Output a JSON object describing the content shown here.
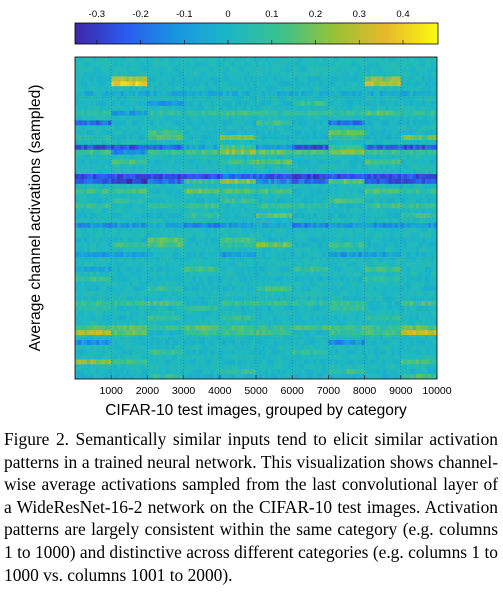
{
  "chart_data": {
    "type": "heatmap",
    "xlabel": "CIFAR-10 test images, grouped by category",
    "ylabel": "Average channel activations (sampled)",
    "x_ticks": [
      1000,
      2000,
      3000,
      4000,
      5000,
      6000,
      7000,
      8000,
      9000,
      10000
    ],
    "xlim": [
      0,
      10000
    ],
    "colorbar": {
      "ticks": [
        -0.3,
        -0.2,
        -0.1,
        0,
        0.1,
        0.2,
        0.3,
        0.4
      ],
      "range": [
        -0.35,
        0.48
      ],
      "colormap": [
        "#3e26a8",
        "#2a5cf0",
        "#1799e0",
        "#1cb8c4",
        "#3cc28c",
        "#98c334",
        "#e8b82a",
        "#f9fb0e"
      ],
      "placement": "top"
    },
    "n_categories": 10,
    "grid": true,
    "baseline_value": 0.02,
    "rows": [
      {
        "row": 4,
        "values": [
          0,
          0.3,
          0,
          0,
          0,
          0,
          0,
          0,
          0.22,
          0
        ]
      },
      {
        "row": 5,
        "values": [
          0,
          0.38,
          0,
          0,
          0,
          0,
          0,
          0,
          0.3,
          0
        ]
      },
      {
        "row": 7,
        "values": [
          -0.04,
          -0.04,
          -0.04,
          -0.04,
          -0.04,
          -0.04,
          -0.04,
          -0.04,
          -0.04,
          -0.04
        ]
      },
      {
        "row": 9,
        "values": [
          0,
          0,
          -0.12,
          0,
          0,
          0,
          0.1,
          0,
          0,
          0
        ]
      },
      {
        "row": 11,
        "values": [
          0.08,
          -0.1,
          0.08,
          0.08,
          0.12,
          0.08,
          0.08,
          0.08,
          0.15,
          0.08
        ]
      },
      {
        "row": 13,
        "values": [
          -0.2,
          0,
          0,
          0,
          0,
          0.1,
          0,
          -0.2,
          0,
          0
        ]
      },
      {
        "row": 15,
        "values": [
          0,
          0,
          0.12,
          0,
          0,
          0,
          0,
          0.18,
          0,
          0
        ]
      },
      {
        "row": 16,
        "values": [
          0.06,
          0,
          0.16,
          0,
          0.2,
          0,
          0,
          0.1,
          0,
          0.18
        ]
      },
      {
        "row": 18,
        "values": [
          -0.25,
          -0.25,
          -0.2,
          -0.05,
          0.12,
          -0.1,
          -0.25,
          0.1,
          -0.2,
          -0.25
        ]
      },
      {
        "row": 19,
        "values": [
          0.1,
          -0.15,
          0.1,
          0.12,
          0.22,
          0.18,
          0.12,
          0.2,
          0.1,
          0.08
        ]
      },
      {
        "row": 21,
        "values": [
          0,
          0.12,
          0,
          0,
          0.1,
          0.15,
          0,
          0,
          0.12,
          0
        ]
      },
      {
        "row": 24,
        "values": [
          -0.25,
          -0.28,
          -0.28,
          -0.25,
          -0.2,
          -0.25,
          -0.28,
          -0.25,
          -0.28,
          -0.25
        ]
      },
      {
        "row": 25,
        "values": [
          -0.22,
          -0.3,
          -0.2,
          0.1,
          0.22,
          -0.12,
          -0.2,
          0.15,
          -0.25,
          -0.25
        ]
      },
      {
        "row": 27,
        "values": [
          0.1,
          0.12,
          0,
          0.18,
          0.12,
          0.12,
          0,
          0,
          0.15,
          0.08
        ]
      },
      {
        "row": 29,
        "values": [
          0,
          0.08,
          0,
          0,
          0.1,
          0,
          0,
          0.12,
          0,
          0
        ]
      },
      {
        "row": 30,
        "values": [
          0.1,
          0,
          0.08,
          0.12,
          0,
          0.1,
          0.08,
          0,
          0.12,
          0.1
        ]
      },
      {
        "row": 32,
        "values": [
          0,
          0,
          0,
          0.1,
          0,
          0.16,
          0,
          0,
          0,
          0.1
        ]
      },
      {
        "row": 34,
        "values": [
          -0.12,
          -0.1,
          -0.05,
          -0.15,
          -0.1,
          -0.05,
          -0.15,
          -0.1,
          -0.12,
          -0.1
        ]
      },
      {
        "row": 37,
        "values": [
          0,
          0,
          0.18,
          0,
          0.12,
          0,
          0,
          0,
          0,
          0
        ]
      },
      {
        "row": 38,
        "values": [
          0,
          0.1,
          0.14,
          0,
          0.08,
          0.2,
          0,
          0.1,
          0,
          0
        ]
      },
      {
        "row": 40,
        "values": [
          -0.08,
          -0.08,
          0,
          0,
          -0.1,
          0,
          0,
          -0.1,
          -0.08,
          0
        ]
      },
      {
        "row": 43,
        "values": [
          -0.05,
          0,
          0,
          0.12,
          0,
          0,
          0.1,
          0,
          0.12,
          0
        ]
      },
      {
        "row": 45,
        "values": [
          0.1,
          0,
          0,
          0,
          0,
          0,
          0,
          0,
          0.08,
          0
        ]
      },
      {
        "row": 47,
        "values": [
          0,
          0,
          0.1,
          0,
          0,
          0.12,
          0,
          0,
          0,
          0
        ]
      },
      {
        "row": 50,
        "values": [
          0.1,
          0.08,
          0.12,
          0,
          0.1,
          0.1,
          0.08,
          0.1,
          0,
          0.12
        ]
      },
      {
        "row": 51,
        "values": [
          0.05,
          0,
          0,
          0.08,
          0,
          0,
          0,
          0.08,
          0,
          0
        ]
      },
      {
        "row": 53,
        "values": [
          0,
          0,
          0.08,
          0,
          0.1,
          0,
          0,
          0,
          0.1,
          0
        ]
      },
      {
        "row": 55,
        "values": [
          0.12,
          0.18,
          0.1,
          0.15,
          0.12,
          0.1,
          0.12,
          0.12,
          0.1,
          0.15
        ]
      },
      {
        "row": 56,
        "values": [
          0.28,
          0.15,
          0,
          0.12,
          0.1,
          0.12,
          0,
          0.1,
          0.12,
          0.32
        ]
      },
      {
        "row": 58,
        "values": [
          -0.12,
          0,
          0,
          0,
          0,
          0,
          0,
          -0.12,
          0,
          0
        ]
      },
      {
        "row": 60,
        "values": [
          0,
          0,
          0.1,
          0,
          0,
          0,
          0.08,
          0,
          0,
          0
        ]
      },
      {
        "row": 62,
        "values": [
          0.22,
          0.1,
          0,
          0,
          0,
          0,
          0,
          0,
          0,
          0.12
        ]
      },
      {
        "row": 64,
        "values": [
          0,
          0,
          0,
          0,
          0.1,
          0,
          0,
          0.1,
          0,
          0
        ]
      },
      {
        "row": 65,
        "values": [
          0,
          0,
          0.08,
          0,
          0,
          0,
          0,
          0,
          0,
          0.12
        ]
      }
    ],
    "n_rows": 66
  },
  "caption": "Figure 2. Semantically similar inputs tend to elicit similar activation patterns in a trained neural network. This visualization shows channel-wise average activations sampled from the last convolutional layer of a WideResNet-16-2 network on the CIFAR-10 test images. Activation patterns are largely consistent within the same category (e.g. columns 1 to 1000) and distinctive across different categories (e.g. columns 1 to 1000 vs. columns 1001 to 2000)."
}
